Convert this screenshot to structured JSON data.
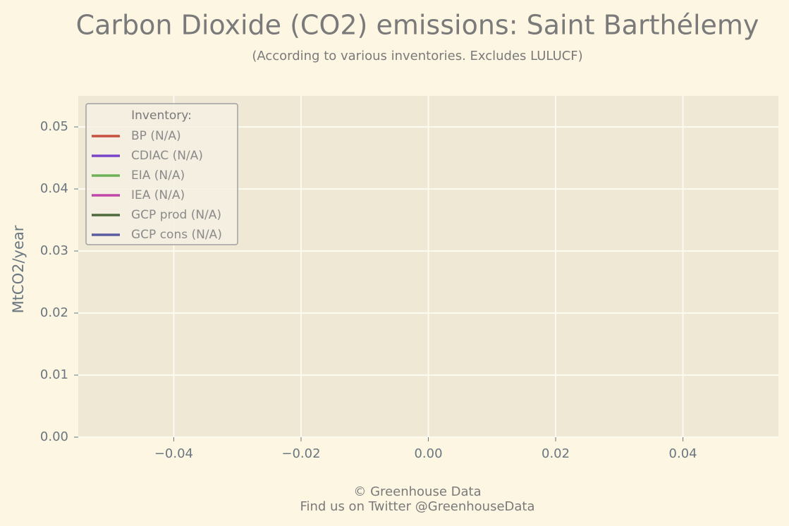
{
  "chart_data": {
    "type": "line",
    "title": "Carbon Dioxide (CO2) emissions: Saint Barthélemy",
    "subtitle": "(According to various inventories. Excludes LULUCF)",
    "y_label": "MtCO2/year",
    "legend_title": "Inventory:",
    "legend": "upper left",
    "grid": true,
    "x": [],
    "series": [
      {
        "name": "BP (N/A)",
        "color": "#c8503f",
        "values": []
      },
      {
        "name": "CDIAC (N/A)",
        "color": "#7a44c9",
        "values": []
      },
      {
        "name": "EIA (N/A)",
        "color": "#6db356",
        "values": []
      },
      {
        "name": "IEA (N/A)",
        "color": "#c245a9",
        "values": []
      },
      {
        "name": "GCP prod (N/A)",
        "color": "#4f6a3c",
        "values": []
      },
      {
        "name": "GCP cons (N/A)",
        "color": "#5b5ba0",
        "values": []
      }
    ],
    "xlim": [
      -0.055,
      0.055
    ],
    "xticks": [
      {
        "value": -0.04,
        "label": "−0.04"
      },
      {
        "value": -0.02,
        "label": "−0.02"
      },
      {
        "value": 0,
        "label": "0.00"
      },
      0.02,
      0.04
    ],
    "ylim": [
      0,
      0.055
    ],
    "yticks": [
      {
        "value": 0,
        "label": "0.00"
      },
      0.01,
      0.02,
      0.03,
      0.04,
      0.05
    ],
    "footer": [
      "© Greenhouse Data",
      "Find us on Twitter @GreenhouseData"
    ]
  }
}
